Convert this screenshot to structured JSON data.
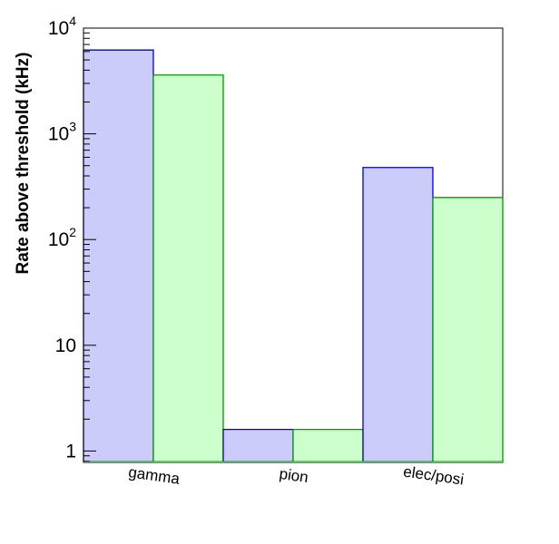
{
  "chart_data": {
    "type": "bar",
    "title": "",
    "xlabel": "",
    "ylabel": "Rate above threshold (kHz)",
    "y_scale": "log",
    "ylim": [
      0.78,
      10000
    ],
    "grid": false,
    "legend": "none",
    "categories": [
      "gamma",
      "pion",
      "elec/posi"
    ],
    "series": [
      {
        "values": [
          6200,
          1.6,
          480
        ],
        "fill": "#ccccfa",
        "stroke": "#0000cc"
      },
      {
        "values": [
          3600,
          1.6,
          250
        ],
        "fill": "#ccffcc",
        "stroke": "#009900"
      }
    ],
    "y_ticks": [
      {
        "value": 1,
        "label": "1"
      },
      {
        "value": 10,
        "label": "10"
      },
      {
        "value": 100,
        "base": "10",
        "exp": "2"
      },
      {
        "value": 1000,
        "base": "10",
        "exp": "3"
      },
      {
        "value": 10000,
        "base": "10",
        "exp": "4"
      }
    ]
  }
}
